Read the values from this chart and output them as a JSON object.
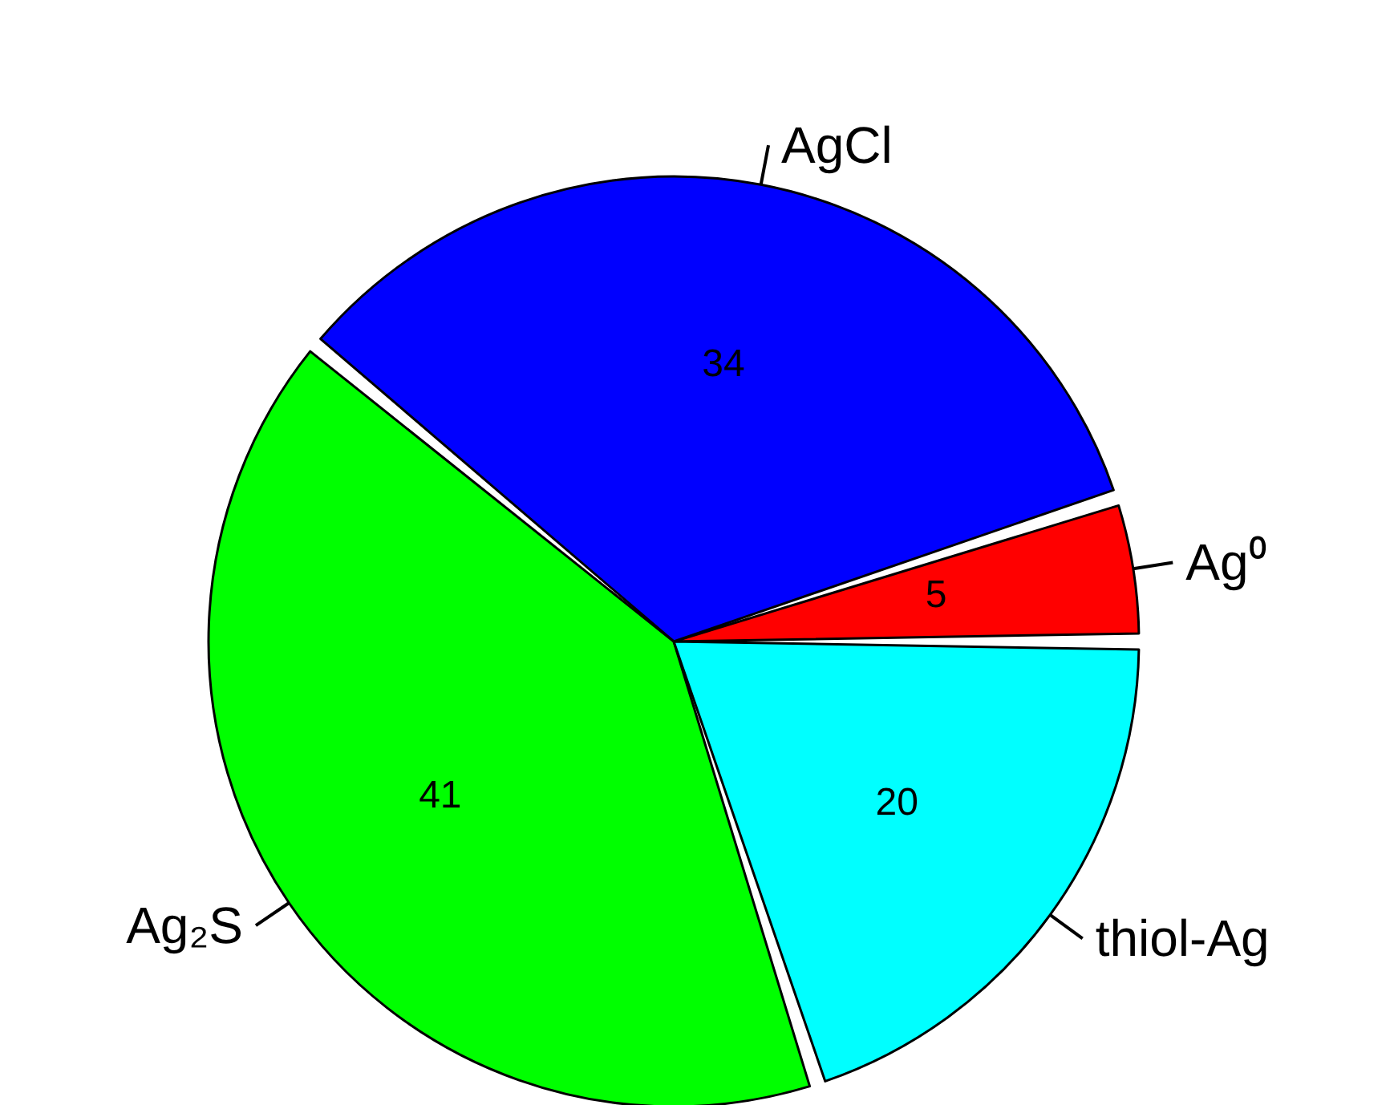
{
  "chart_data": {
    "type": "pie",
    "categories": [
      "Ag⁰",
      "AgCl",
      "Ag₂S",
      "thiol-Ag"
    ],
    "values": [
      5,
      34,
      41,
      20
    ],
    "colors": [
      "#ff0000",
      "#0000ff",
      "#00ff00",
      "#00ffff"
    ],
    "data_labels": true,
    "legend": false
  }
}
